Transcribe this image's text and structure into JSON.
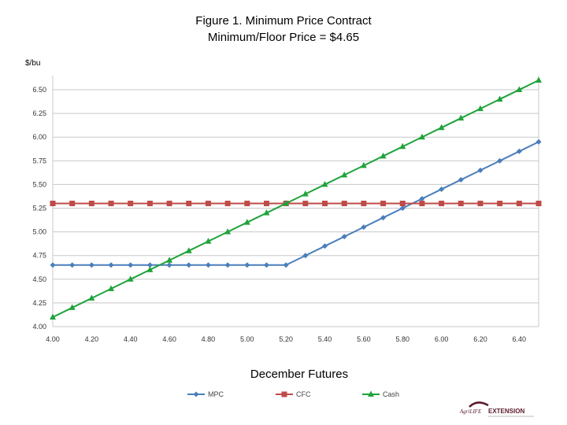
{
  "chart_data": {
    "type": "line",
    "title": "Figure 1. Minimum Price Contract",
    "subtitle": "Minimum/Floor Price = $4.65",
    "ylabel": "$/bu",
    "xlabel": "December Futures",
    "xlim": [
      4.0,
      6.5
    ],
    "ylim": [
      4.0,
      6.65
    ],
    "x_ticks": [
      "4.00",
      "4.20",
      "4.40",
      "4.60",
      "4.80",
      "5.00",
      "5.20",
      "5.40",
      "5.60",
      "5.80",
      "6.00",
      "6.20",
      "6.40"
    ],
    "y_ticks": [
      "4.00",
      "4.25",
      "4.50",
      "4.75",
      "5.00",
      "5.25",
      "5.50",
      "5.75",
      "6.00",
      "6.25",
      "6.50"
    ],
    "grid": "horizontal",
    "legend_position": "bottom",
    "x": [
      4.0,
      4.1,
      4.2,
      4.3,
      4.4,
      4.5,
      4.6,
      4.7,
      4.8,
      4.9,
      5.0,
      5.1,
      5.2,
      5.3,
      5.4,
      5.5,
      5.6,
      5.7,
      5.8,
      5.9,
      6.0,
      6.1,
      6.2,
      6.3,
      6.4,
      6.5
    ],
    "series": [
      {
        "name": "MPC",
        "color": "#4a7ebb",
        "marker": "diamond",
        "values": [
          4.65,
          4.65,
          4.65,
          4.65,
          4.65,
          4.65,
          4.65,
          4.65,
          4.65,
          4.65,
          4.65,
          4.65,
          4.65,
          4.75,
          4.85,
          4.95,
          5.05,
          5.15,
          5.25,
          5.35,
          5.45,
          5.55,
          5.65,
          5.75,
          5.85,
          5.95
        ]
      },
      {
        "name": "CFC",
        "color": "#be4b48",
        "marker": "square",
        "values": [
          5.3,
          5.3,
          5.3,
          5.3,
          5.3,
          5.3,
          5.3,
          5.3,
          5.3,
          5.3,
          5.3,
          5.3,
          5.3,
          5.3,
          5.3,
          5.3,
          5.3,
          5.3,
          5.3,
          5.3,
          5.3,
          5.3,
          5.3,
          5.3,
          5.3,
          5.3
        ]
      },
      {
        "name": "Cash",
        "color": "#1fa33a",
        "marker": "triangle",
        "values": [
          4.1,
          4.2,
          4.3,
          4.4,
          4.5,
          4.6,
          4.7,
          4.8,
          4.9,
          5.0,
          5.1,
          5.2,
          5.3,
          5.4,
          5.5,
          5.6,
          5.7,
          5.8,
          5.9,
          6.0,
          6.1,
          6.2,
          6.3,
          6.4,
          6.5,
          6.6
        ]
      }
    ]
  },
  "logo": {
    "name": "extension-logo",
    "text_a": "AgriLIFE",
    "text_b": "EXTENSION",
    "colors": {
      "maroon": "#5a1a2a",
      "gray": "#777777"
    }
  }
}
